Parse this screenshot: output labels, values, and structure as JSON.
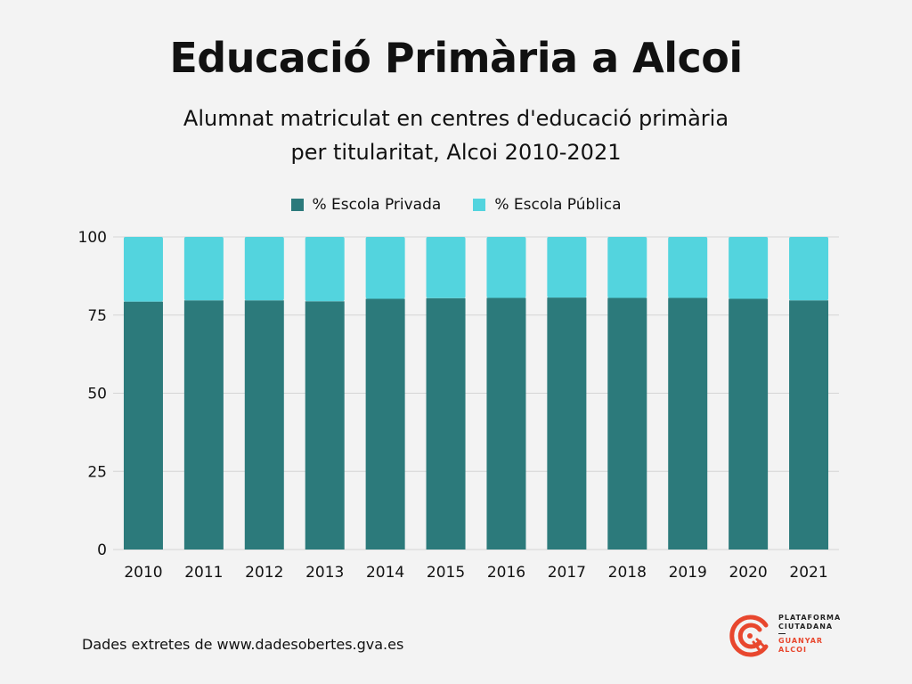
{
  "title": "Educació Primària a Alcoi",
  "subtitle_line1": "Alumnat matriculat en centres d'educació primària",
  "subtitle_line2": "per titularitat, Alcoi 2010-2021",
  "legend": {
    "private_label": "% Escola Privada",
    "public_label": "% Escola Pública"
  },
  "colors": {
    "private": "#2c7a7b",
    "public": "#53d4de",
    "logo": "#e8472e"
  },
  "source": "Dades extretes de www.dadesobertes.gva.es",
  "logo": {
    "line1": "PLATAFORMA",
    "line2": "CIUTADANA",
    "line3": "GUANYAR",
    "line4": "ALCOI"
  },
  "chart_data": {
    "type": "bar",
    "stacked": true,
    "categories": [
      "2010",
      "2011",
      "2012",
      "2013",
      "2014",
      "2015",
      "2016",
      "2017",
      "2018",
      "2019",
      "2020",
      "2021"
    ],
    "series": [
      {
        "name": "% Escola Privada",
        "values": [
          79.3,
          79.7,
          79.7,
          79.4,
          80.2,
          80.4,
          80.5,
          80.6,
          80.5,
          80.5,
          80.2,
          79.7
        ]
      },
      {
        "name": "% Escola Pública",
        "values": [
          20.7,
          20.3,
          20.3,
          20.6,
          19.8,
          19.6,
          19.5,
          19.4,
          19.5,
          19.5,
          19.8,
          20.3
        ]
      }
    ],
    "yticks": [
      0,
      25,
      50,
      75,
      100
    ],
    "ylim": [
      0,
      100
    ],
    "grid": true,
    "legend_position": "top"
  }
}
